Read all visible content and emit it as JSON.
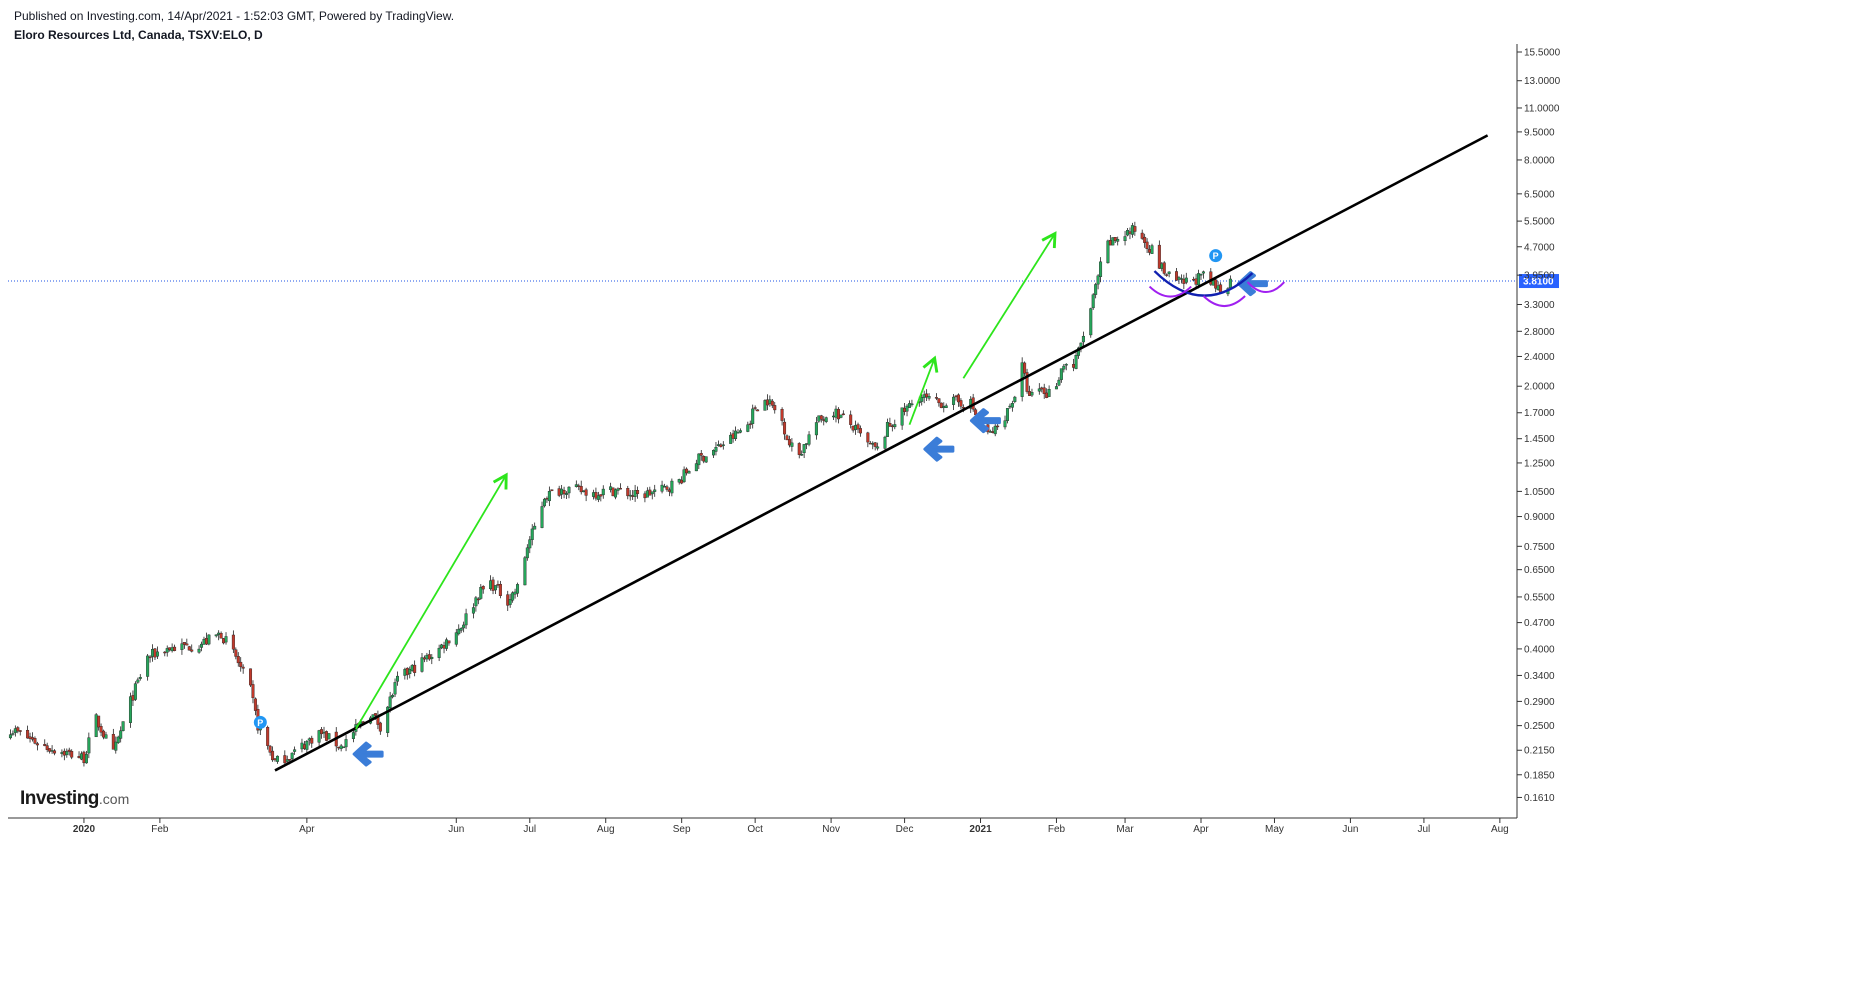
{
  "header": {
    "published": "Published on Investing.com, 14/Apr/2021 - 1:52:03 GMT, Powered by TradingView.",
    "title": "Eloro Resources Ltd, Canada, TSXV:ELO, D"
  },
  "logo": {
    "brand": "Investing",
    "suffix": ".com"
  },
  "chart_data": {
    "type": "candlestick",
    "symbol": "TSXV:ELO",
    "interval": "D",
    "y_scale": "log",
    "ylim": [
      0.15,
      15.5
    ],
    "x_start": "2019-12-01",
    "x_end": "2021-08-08",
    "y_ticks": [
      "15.5000",
      "13.0000",
      "11.0000",
      "9.5000",
      "8.0000",
      "6.5000",
      "5.5000",
      "4.7000",
      "3.9500",
      "3.3000",
      "2.8000",
      "2.4000",
      "2.0000",
      "1.7000",
      "1.4500",
      "1.2500",
      "1.0500",
      "0.9000",
      "0.7500",
      "0.6500",
      "0.5500",
      "0.4700",
      "0.4000",
      "0.3400",
      "0.2900",
      "0.2500",
      "0.2150",
      "0.1850",
      "0.1610"
    ],
    "x_ticks": [
      {
        "date": "2020-01-01",
        "label": "2020"
      },
      {
        "date": "2020-02-01",
        "label": "Feb"
      },
      {
        "date": "2020-04-01",
        "label": "Apr"
      },
      {
        "date": "2020-06-01",
        "label": "Jun"
      },
      {
        "date": "2020-07-01",
        "label": "Jul"
      },
      {
        "date": "2020-08-01",
        "label": "Aug"
      },
      {
        "date": "2020-09-01",
        "label": "Sep"
      },
      {
        "date": "2020-10-01",
        "label": "Oct"
      },
      {
        "date": "2020-11-01",
        "label": "Nov"
      },
      {
        "date": "2020-12-01",
        "label": "Dec"
      },
      {
        "date": "2021-01-01",
        "label": "2021"
      },
      {
        "date": "2021-02-01",
        "label": "Feb"
      },
      {
        "date": "2021-03-01",
        "label": "Mar"
      },
      {
        "date": "2021-04-01",
        "label": "Apr"
      },
      {
        "date": "2021-05-01",
        "label": "May"
      },
      {
        "date": "2021-06-01",
        "label": "Jun"
      },
      {
        "date": "2021-07-01",
        "label": "Jul"
      },
      {
        "date": "2021-08-01",
        "label": "Aug"
      }
    ],
    "last_price": 3.81,
    "last_price_label": "3.8100",
    "series": [
      {
        "name": "",
        "values": [
          {
            "date": "2019-12-02",
            "close": 0.245
          },
          {
            "date": "2019-12-16",
            "close": 0.22
          },
          {
            "date": "2020-01-01",
            "close": 0.205
          },
          {
            "date": "2020-01-06",
            "close": 0.26
          },
          {
            "date": "2020-01-13",
            "close": 0.21
          },
          {
            "date": "2020-01-20",
            "close": 0.29
          },
          {
            "date": "2020-01-27",
            "close": 0.38
          },
          {
            "date": "2020-02-03",
            "close": 0.4
          },
          {
            "date": "2020-02-17",
            "close": 0.41
          },
          {
            "date": "2020-02-26",
            "close": 0.44
          },
          {
            "date": "2020-03-03",
            "close": 0.38
          },
          {
            "date": "2020-03-09",
            "close": 0.31
          },
          {
            "date": "2020-03-12",
            "close": 0.25
          },
          {
            "date": "2020-03-19",
            "close": 0.2
          },
          {
            "date": "2020-03-26",
            "close": 0.21
          },
          {
            "date": "2020-04-06",
            "close": 0.24
          },
          {
            "date": "2020-04-15",
            "close": 0.22
          },
          {
            "date": "2020-04-27",
            "close": 0.27
          },
          {
            "date": "2020-05-01",
            "close": 0.25
          },
          {
            "date": "2020-05-08",
            "close": 0.33
          },
          {
            "date": "2020-05-18",
            "close": 0.37
          },
          {
            "date": "2020-05-25",
            "close": 0.4
          },
          {
            "date": "2020-06-03",
            "close": 0.46
          },
          {
            "date": "2020-06-10",
            "close": 0.56
          },
          {
            "date": "2020-06-15",
            "close": 0.6
          },
          {
            "date": "2020-06-22",
            "close": 0.54
          },
          {
            "date": "2020-06-26",
            "close": 0.58
          },
          {
            "date": "2020-06-30",
            "close": 0.75
          },
          {
            "date": "2020-07-03",
            "close": 0.84
          },
          {
            "date": "2020-07-07",
            "close": 1.02
          },
          {
            "date": "2020-07-15",
            "close": 1.07
          },
          {
            "date": "2020-07-27",
            "close": 1.04
          },
          {
            "date": "2020-08-05",
            "close": 1.06
          },
          {
            "date": "2020-08-14",
            "close": 1.02
          },
          {
            "date": "2020-08-24",
            "close": 1.06
          },
          {
            "date": "2020-08-31",
            "close": 1.12
          },
          {
            "date": "2020-09-07",
            "close": 1.27
          },
          {
            "date": "2020-09-14",
            "close": 1.35
          },
          {
            "date": "2020-09-21",
            "close": 1.45
          },
          {
            "date": "2020-09-28",
            "close": 1.58
          },
          {
            "date": "2020-10-01",
            "close": 1.76
          },
          {
            "date": "2020-10-06",
            "close": 1.84
          },
          {
            "date": "2020-10-12",
            "close": 1.62
          },
          {
            "date": "2020-10-15",
            "close": 1.4
          },
          {
            "date": "2020-10-19",
            "close": 1.32
          },
          {
            "date": "2020-10-26",
            "close": 1.6
          },
          {
            "date": "2020-11-02",
            "close": 1.72
          },
          {
            "date": "2020-11-09",
            "close": 1.58
          },
          {
            "date": "2020-11-16",
            "close": 1.4
          },
          {
            "date": "2020-11-20",
            "close": 1.35
          },
          {
            "date": "2020-11-24",
            "close": 1.55
          },
          {
            "date": "2020-12-01",
            "close": 1.72
          },
          {
            "date": "2020-12-07",
            "close": 1.88
          },
          {
            "date": "2020-12-14",
            "close": 1.8
          },
          {
            "date": "2020-12-21",
            "close": 1.82
          },
          {
            "date": "2020-12-28",
            "close": 1.8
          },
          {
            "date": "2020-12-31",
            "close": 1.62
          },
          {
            "date": "2021-01-04",
            "close": 1.48
          },
          {
            "date": "2021-01-08",
            "close": 1.55
          },
          {
            "date": "2021-01-12",
            "close": 1.72
          },
          {
            "date": "2021-01-15",
            "close": 1.9
          },
          {
            "date": "2021-01-18",
            "close": 2.25
          },
          {
            "date": "2021-01-21",
            "close": 1.85
          },
          {
            "date": "2021-01-25",
            "close": 1.98
          },
          {
            "date": "2021-01-28",
            "close": 1.9
          },
          {
            "date": "2021-02-01",
            "close": 2.05
          },
          {
            "date": "2021-02-04",
            "close": 2.3
          },
          {
            "date": "2021-02-08",
            "close": 2.25
          },
          {
            "date": "2021-02-11",
            "close": 2.6
          },
          {
            "date": "2021-02-15",
            "close": 3.2
          },
          {
            "date": "2021-02-18",
            "close": 3.9
          },
          {
            "date": "2021-02-21",
            "close": 4.7
          },
          {
            "date": "2021-02-25",
            "close": 4.9
          },
          {
            "date": "2021-03-01",
            "close": 5.1
          },
          {
            "date": "2021-03-05",
            "close": 5.2
          },
          {
            "date": "2021-03-09",
            "close": 4.9
          },
          {
            "date": "2021-03-12",
            "close": 4.6
          },
          {
            "date": "2021-03-15",
            "close": 4.2
          },
          {
            "date": "2021-03-19",
            "close": 3.9
          },
          {
            "date": "2021-03-24",
            "close": 3.75
          },
          {
            "date": "2021-03-29",
            "close": 3.85
          },
          {
            "date": "2021-04-02",
            "close": 3.9
          },
          {
            "date": "2021-04-06",
            "close": 3.7
          },
          {
            "date": "2021-04-09",
            "close": 3.62
          },
          {
            "date": "2021-04-13",
            "close": 3.81
          }
        ]
      }
    ],
    "annotations": [
      {
        "type": "trendline",
        "from": {
          "date": "2020-03-19",
          "price": 0.19
        },
        "to": {
          "date": "2021-07-27",
          "price": 9.3
        }
      },
      {
        "type": "arrow-green",
        "from": {
          "date": "2020-04-21",
          "price": 0.245
        },
        "to": {
          "date": "2020-06-21",
          "price": 1.15
        }
      },
      {
        "type": "arrow-green",
        "from": {
          "date": "2020-12-03",
          "price": 1.58
        },
        "to": {
          "date": "2020-12-13",
          "price": 2.35
        }
      },
      {
        "type": "arrow-green",
        "from": {
          "date": "2020-12-25",
          "price": 2.1
        },
        "to": {
          "date": "2021-01-31",
          "price": 5.05
        }
      },
      {
        "type": "arrow-blue",
        "date": "2020-04-26",
        "price": 0.21
      },
      {
        "type": "arrow-blue",
        "date": "2020-12-15",
        "price": 1.36
      },
      {
        "type": "arrow-blue",
        "date": "2021-01-03",
        "price": 1.62
      },
      {
        "type": "arrow-blue",
        "date": "2021-04-22",
        "price": 3.75
      }
    ]
  }
}
